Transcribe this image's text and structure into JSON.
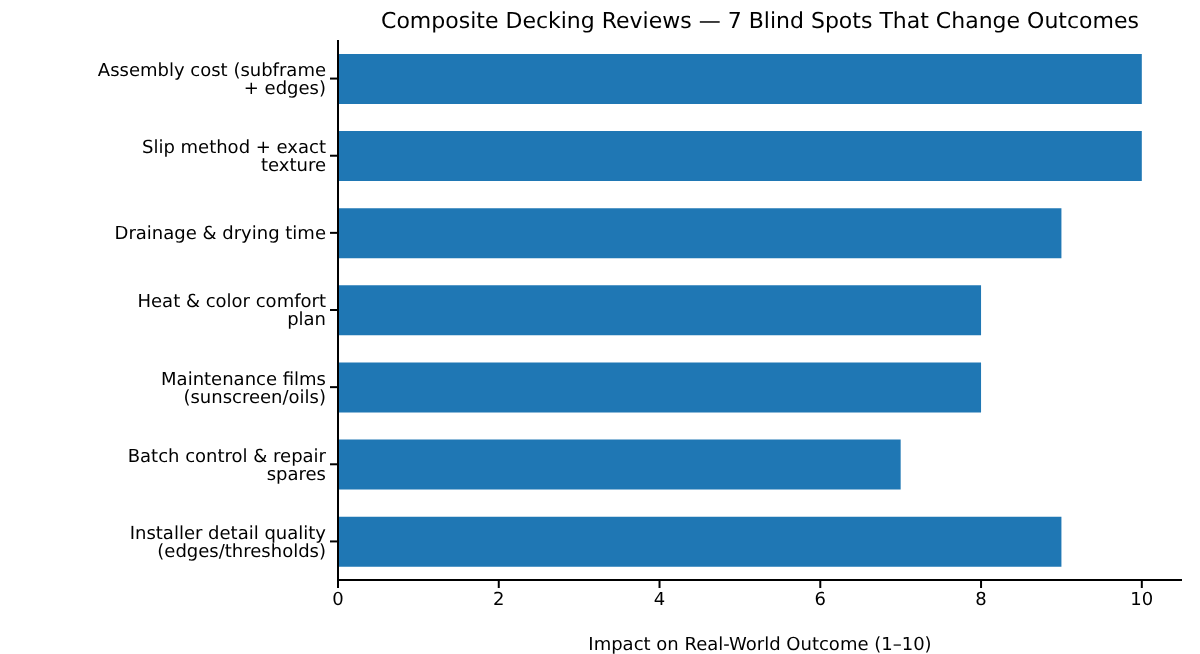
{
  "chart_data": {
    "type": "bar",
    "orientation": "horizontal",
    "title": "Composite Decking Reviews — 7 Blind Spots That Change Outcomes",
    "xlabel": "Impact on Real-World Outcome (1–10)",
    "categories": [
      "Assembly cost (subframe + edges)",
      "Slip method + exact texture",
      "Drainage & drying time",
      "Heat & color comfort plan",
      "Maintenance films (sunscreen/oils)",
      "Batch control & repair spares",
      "Installer detail quality (edges/thresholds)"
    ],
    "values": [
      10,
      10,
      9,
      8,
      8,
      7,
      9
    ],
    "color": "#1f77b4",
    "xlim": [
      0,
      10.5
    ],
    "xticks": [
      0,
      2,
      4,
      6,
      8,
      10
    ],
    "grid": false,
    "legend": false
  }
}
